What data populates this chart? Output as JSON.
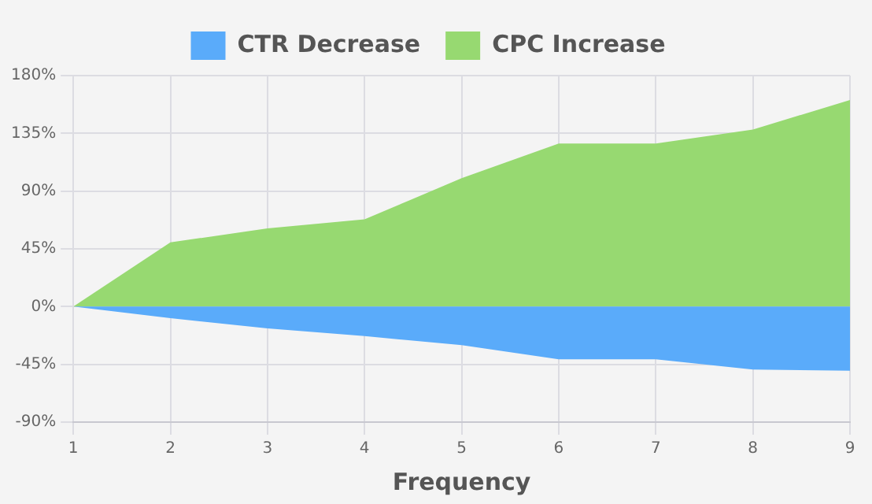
{
  "chart_data": {
    "type": "area",
    "xlabel": "Frequency",
    "categories": [
      "1",
      "2",
      "3",
      "4",
      "5",
      "6",
      "7",
      "8",
      "9"
    ],
    "series": [
      {
        "name": "CTR Decrease",
        "color": "#5aabfa",
        "values": [
          0,
          -9,
          -17,
          -23,
          -30,
          -41,
          -41,
          -49,
          -50
        ]
      },
      {
        "name": "CPC Increase",
        "color": "#97d971",
        "values": [
          0,
          50,
          61,
          68,
          100,
          127,
          127,
          138,
          161
        ]
      }
    ],
    "ylim": [
      -90,
      180
    ],
    "yticks": [
      {
        "value": -90,
        "label": "-90%"
      },
      {
        "value": -45,
        "label": "-45%"
      },
      {
        "value": 0,
        "label": "0%"
      },
      {
        "value": 45,
        "label": "45%"
      },
      {
        "value": 90,
        "label": "90%"
      },
      {
        "value": 135,
        "label": "135%"
      },
      {
        "value": 180,
        "label": "180%"
      }
    ],
    "grid": true,
    "legend": "top"
  }
}
